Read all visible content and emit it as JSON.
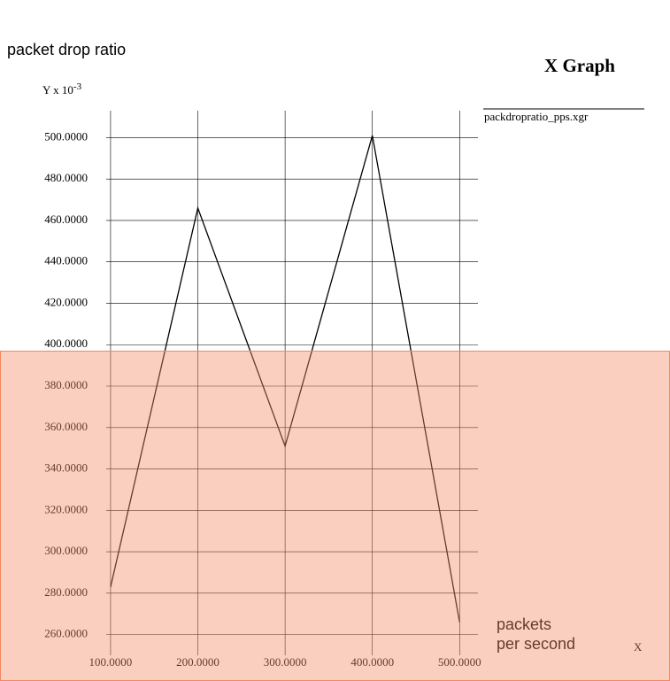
{
  "chart_data": {
    "type": "line",
    "title": "X Graph",
    "ylabel": "packet drop ratio",
    "y_unit": {
      "base": "Y x 10",
      "exponent": "-3"
    },
    "xlabel": [
      "packets",
      "per second"
    ],
    "x_axis_name": "X",
    "x": [
      100,
      200,
      300,
      400,
      500
    ],
    "series": [
      {
        "name": "packdropratio_pps.xgr",
        "color": "#000000",
        "values": [
          283,
          466,
          351,
          501,
          266
        ]
      }
    ],
    "xlim": [
      95,
      521
    ],
    "ylim": [
      250,
      513
    ],
    "xticks": [
      {
        "value": 100,
        "label": "100.0000"
      },
      {
        "value": 200,
        "label": "200.0000"
      },
      {
        "value": 300,
        "label": "300.0000"
      },
      {
        "value": 400,
        "label": "400.0000"
      },
      {
        "value": 500,
        "label": "500.0000"
      }
    ],
    "yticks": [
      {
        "value": 260,
        "label": "260.0000"
      },
      {
        "value": 280,
        "label": "280.0000"
      },
      {
        "value": 300,
        "label": "300.0000"
      },
      {
        "value": 320,
        "label": "320.0000"
      },
      {
        "value": 340,
        "label": "340.0000"
      },
      {
        "value": 360,
        "label": "360.0000"
      },
      {
        "value": 380,
        "label": "380.0000"
      },
      {
        "value": 400,
        "label": "400.0000"
      },
      {
        "value": 420,
        "label": "420.0000"
      },
      {
        "value": 440,
        "label": "440.0000"
      },
      {
        "value": 460,
        "label": "460.0000"
      },
      {
        "value": 480,
        "label": "480.0000"
      },
      {
        "value": 500,
        "label": "500.0000"
      }
    ],
    "grid": true
  }
}
